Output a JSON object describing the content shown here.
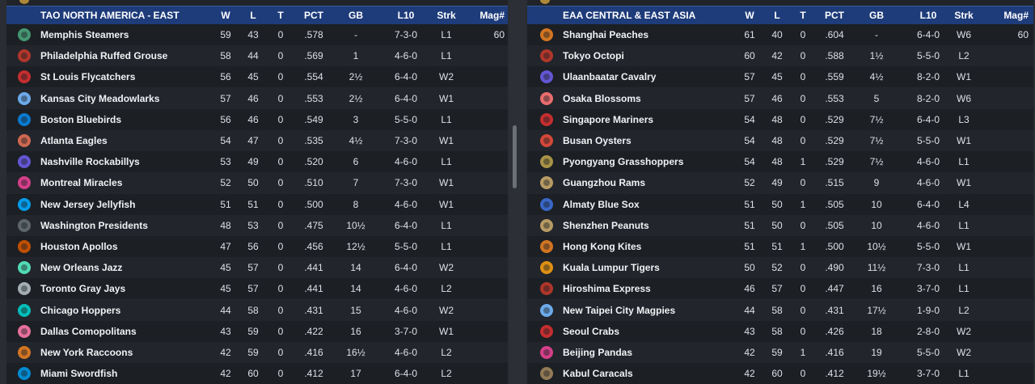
{
  "columns": {
    "w": "W",
    "l": "L",
    "t": "T",
    "pct": "PCT",
    "gb": "GB",
    "l10": "L10",
    "strk": "Strk",
    "mag": "Mag#"
  },
  "left": {
    "title": "TAO NORTH AMERICA - EAST",
    "teams": [
      {
        "name": "Memphis Steamers",
        "w": "59",
        "l": "43",
        "t": "0",
        "pct": ".578",
        "gb": "-",
        "l10": "7-3-0",
        "strk": "L1",
        "mag": "60",
        "logo": "steamer-icon",
        "color": "#4aa37a"
      },
      {
        "name": "Philadelphia Ruffed Grouse",
        "w": "58",
        "l": "44",
        "t": "0",
        "pct": ".569",
        "gb": "1",
        "l10": "4-6-0",
        "strk": "L1",
        "mag": "",
        "logo": "grouse-icon",
        "color": "#c0392b"
      },
      {
        "name": "St Louis Flycatchers",
        "w": "56",
        "l": "45",
        "t": "0",
        "pct": ".554",
        "gb": "2½",
        "l10": "6-4-0",
        "strk": "W2",
        "mag": "",
        "logo": "flycatcher-icon",
        "color": "#d63031"
      },
      {
        "name": "Kansas City Meadowlarks",
        "w": "57",
        "l": "46",
        "t": "0",
        "pct": ".553",
        "gb": "2½",
        "l10": "6-4-0",
        "strk": "W1",
        "mag": "",
        "logo": "meadowlark-icon",
        "color": "#74b9ff"
      },
      {
        "name": "Boston Bluebirds",
        "w": "56",
        "l": "46",
        "t": "0",
        "pct": ".549",
        "gb": "3",
        "l10": "5-5-0",
        "strk": "L1",
        "mag": "",
        "logo": "bluebird-icon",
        "color": "#0984e3"
      },
      {
        "name": "Atlanta Eagles",
        "w": "54",
        "l": "47",
        "t": "0",
        "pct": ".535",
        "gb": "4½",
        "l10": "7-3-0",
        "strk": "W1",
        "mag": "",
        "logo": "eagle-icon",
        "color": "#e17055"
      },
      {
        "name": "Nashville Rockabillys",
        "w": "53",
        "l": "49",
        "t": "0",
        "pct": ".520",
        "gb": "6",
        "l10": "4-6-0",
        "strk": "L1",
        "mag": "",
        "logo": "guitar-icon",
        "color": "#6c5ce7"
      },
      {
        "name": "Montreal Miracles",
        "w": "52",
        "l": "50",
        "t": "0",
        "pct": ".510",
        "gb": "7",
        "l10": "7-3-0",
        "strk": "W1",
        "mag": "",
        "logo": "m-letter-icon",
        "color": "#e84393"
      },
      {
        "name": "New Jersey Jellyfish",
        "w": "51",
        "l": "51",
        "t": "0",
        "pct": ".500",
        "gb": "8",
        "l10": "4-6-0",
        "strk": "W1",
        "mag": "",
        "logo": "jellyfish-icon",
        "color": "#00a8ff"
      },
      {
        "name": "Washington Presidents",
        "w": "48",
        "l": "53",
        "t": "0",
        "pct": ".475",
        "gb": "10½",
        "l10": "6-4-0",
        "strk": "L1",
        "mag": "",
        "logo": "president-icon",
        "color": "#636e72"
      },
      {
        "name": "Houston Apollos",
        "w": "47",
        "l": "56",
        "t": "0",
        "pct": ".456",
        "gb": "12½",
        "l10": "5-5-0",
        "strk": "L1",
        "mag": "",
        "logo": "rocket-icon",
        "color": "#d35400"
      },
      {
        "name": "New Orleans Jazz",
        "w": "45",
        "l": "57",
        "t": "0",
        "pct": ".441",
        "gb": "14",
        "l10": "6-4-0",
        "strk": "W2",
        "mag": "",
        "logo": "jazz-icon",
        "color": "#55efc4"
      },
      {
        "name": "Toronto Gray Jays",
        "w": "45",
        "l": "57",
        "t": "0",
        "pct": ".441",
        "gb": "14",
        "l10": "4-6-0",
        "strk": "L2",
        "mag": "",
        "logo": "grayjay-icon",
        "color": "#b2bec3"
      },
      {
        "name": "Chicago Hoppers",
        "w": "44",
        "l": "58",
        "t": "0",
        "pct": ".431",
        "gb": "15",
        "l10": "4-6-0",
        "strk": "W2",
        "mag": "",
        "logo": "hopper-icon",
        "color": "#00cec9"
      },
      {
        "name": "Dallas Comopolitans",
        "w": "43",
        "l": "59",
        "t": "0",
        "pct": ".422",
        "gb": "16",
        "l10": "3-7-0",
        "strk": "W1",
        "mag": "",
        "logo": "star-icon",
        "color": "#fd79a8"
      },
      {
        "name": "New York Raccoons",
        "w": "42",
        "l": "59",
        "t": "0",
        "pct": ".416",
        "gb": "16½",
        "l10": "4-6-0",
        "strk": "L2",
        "mag": "",
        "logo": "raccoon-icon",
        "color": "#e67e22"
      },
      {
        "name": "Miami Swordfish",
        "w": "42",
        "l": "60",
        "t": "0",
        "pct": ".412",
        "gb": "17",
        "l10": "6-4-0",
        "strk": "L2",
        "mag": "",
        "logo": "swordfish-icon",
        "color": "#0097e6"
      }
    ]
  },
  "right": {
    "title": "EAA CENTRAL & EAST ASIA",
    "teams": [
      {
        "name": "Shanghai Peaches",
        "w": "61",
        "l": "40",
        "t": "0",
        "pct": ".604",
        "gb": "-",
        "l10": "6-4-0",
        "strk": "W6",
        "mag": "60",
        "logo": "peach-icon",
        "color": "#e67e22"
      },
      {
        "name": "Tokyo Octopi",
        "w": "60",
        "l": "42",
        "t": "0",
        "pct": ".588",
        "gb": "1½",
        "l10": "5-5-0",
        "strk": "L2",
        "mag": "",
        "logo": "octopus-icon",
        "color": "#c0392b"
      },
      {
        "name": "Ulaanbaatar Cavalry",
        "w": "57",
        "l": "45",
        "t": "0",
        "pct": ".559",
        "gb": "4½",
        "l10": "8-2-0",
        "strk": "W1",
        "mag": "",
        "logo": "horse-icon",
        "color": "#6c5ce7"
      },
      {
        "name": "Osaka Blossoms",
        "w": "57",
        "l": "46",
        "t": "0",
        "pct": ".553",
        "gb": "5",
        "l10": "8-2-0",
        "strk": "W6",
        "mag": "",
        "logo": "blossom-icon",
        "color": "#ff7675"
      },
      {
        "name": "Singapore Mariners",
        "w": "54",
        "l": "48",
        "t": "0",
        "pct": ".529",
        "gb": "7½",
        "l10": "6-4-0",
        "strk": "L3",
        "mag": "",
        "logo": "mariner-icon",
        "color": "#d63031"
      },
      {
        "name": "Busan Oysters",
        "w": "54",
        "l": "48",
        "t": "0",
        "pct": ".529",
        "gb": "7½",
        "l10": "5-5-0",
        "strk": "W1",
        "mag": "",
        "logo": "oyster-icon",
        "color": "#e74c3c"
      },
      {
        "name": "Pyongyang Grasshoppers",
        "w": "54",
        "l": "48",
        "t": "1",
        "pct": ".529",
        "gb": "7½",
        "l10": "4-6-0",
        "strk": "L1",
        "mag": "",
        "logo": "grasshopper-icon",
        "color": "#b8a04a"
      },
      {
        "name": "Guangzhou Rams",
        "w": "52",
        "l": "49",
        "t": "0",
        "pct": ".515",
        "gb": "9",
        "l10": "4-6-0",
        "strk": "W1",
        "mag": "",
        "logo": "ram-icon",
        "color": "#c8a96a"
      },
      {
        "name": "Almaty Blue Sox",
        "w": "51",
        "l": "50",
        "t": "1",
        "pct": ".505",
        "gb": "10",
        "l10": "6-4-0",
        "strk": "L4",
        "mag": "",
        "logo": "sock-icon",
        "color": "#3c6fd8"
      },
      {
        "name": "Shenzhen Peanuts",
        "w": "51",
        "l": "50",
        "t": "0",
        "pct": ".505",
        "gb": "10",
        "l10": "4-6-0",
        "strk": "L1",
        "mag": "",
        "logo": "peanut-icon",
        "color": "#c8a96a"
      },
      {
        "name": "Hong Kong Kites",
        "w": "51",
        "l": "51",
        "t": "1",
        "pct": ".500",
        "gb": "10½",
        "l10": "5-5-0",
        "strk": "W1",
        "mag": "",
        "logo": "kite-icon",
        "color": "#e67e22"
      },
      {
        "name": "Kuala Lumpur Tigers",
        "w": "50",
        "l": "52",
        "t": "0",
        "pct": ".490",
        "gb": "11½",
        "l10": "7-3-0",
        "strk": "L1",
        "mag": "",
        "logo": "tiger-icon",
        "color": "#f39c12"
      },
      {
        "name": "Hiroshima Express",
        "w": "46",
        "l": "57",
        "t": "0",
        "pct": ".447",
        "gb": "16",
        "l10": "3-7-0",
        "strk": "L1",
        "mag": "",
        "logo": "express-icon",
        "color": "#c0392b"
      },
      {
        "name": "New Taipei City Magpies",
        "w": "44",
        "l": "58",
        "t": "0",
        "pct": ".431",
        "gb": "17½",
        "l10": "1-9-0",
        "strk": "L2",
        "mag": "",
        "logo": "magpie-icon",
        "color": "#74b9ff"
      },
      {
        "name": "Seoul Crabs",
        "w": "43",
        "l": "58",
        "t": "0",
        "pct": ".426",
        "gb": "18",
        "l10": "2-8-0",
        "strk": "W2",
        "mag": "",
        "logo": "crab-icon",
        "color": "#d63031"
      },
      {
        "name": "Beijing Pandas",
        "w": "42",
        "l": "59",
        "t": "1",
        "pct": ".416",
        "gb": "19",
        "l10": "5-5-0",
        "strk": "W2",
        "mag": "",
        "logo": "panda-icon",
        "color": "#e84393"
      },
      {
        "name": "Kabul Caracals",
        "w": "42",
        "l": "60",
        "t": "0",
        "pct": ".412",
        "gb": "19½",
        "l10": "3-7-0",
        "strk": "L1",
        "mag": "",
        "logo": "caracal-icon",
        "color": "#a0845c"
      }
    ]
  }
}
